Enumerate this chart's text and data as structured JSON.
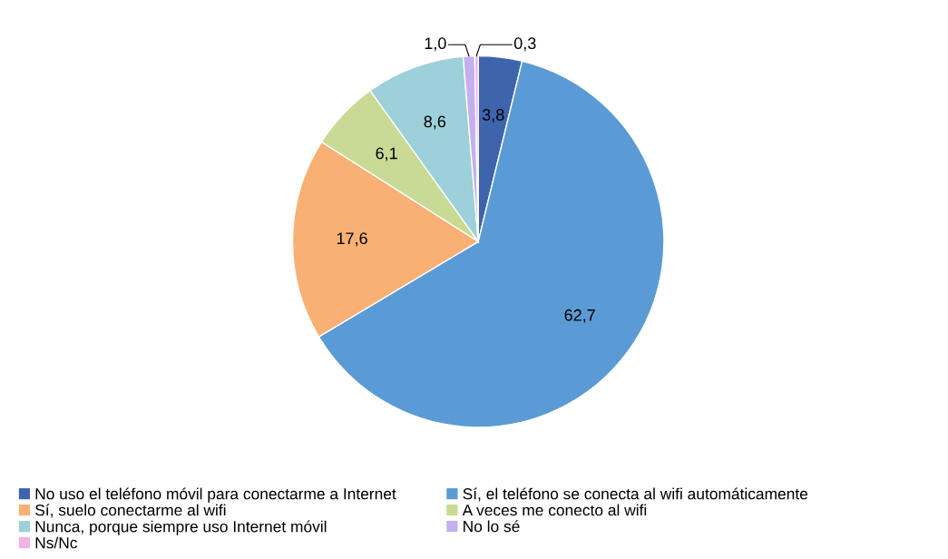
{
  "chart_data": {
    "type": "pie",
    "categories": [
      "No uso el teléfono móvil para conectarme a Internet",
      "Sí, el teléfono se conecta al wifi automáticamente",
      "Sí, suelo conectarme al wifi",
      "A veces me conecto al wifi",
      "Nunca, porque siempre uso Internet móvil",
      "No lo sé",
      "Ns/Nc"
    ],
    "values": [
      3.8,
      62.7,
      17.6,
      6.1,
      8.6,
      1.0,
      0.3
    ],
    "value_labels": [
      "3,8",
      "62,7",
      "17,6",
      "6,1",
      "8,6",
      "1,0",
      "0,3"
    ],
    "colors": [
      "#3d64ad",
      "#5b9bd5",
      "#f8b074",
      "#c9da95",
      "#9dd0d8",
      "#c4b0ef",
      "#f5b2e3"
    ],
    "legend": "bottom"
  }
}
